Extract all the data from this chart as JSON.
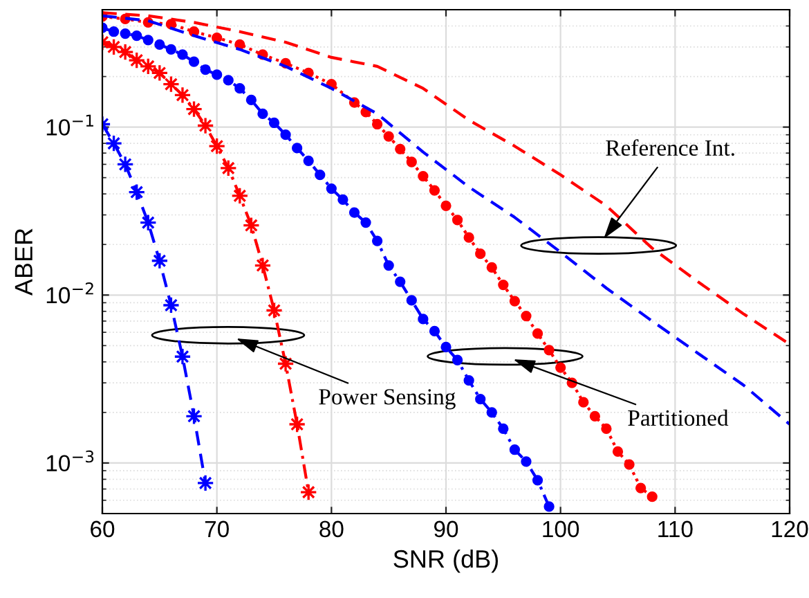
{
  "chart_data": {
    "type": "line",
    "xlabel": "SNR (dB)",
    "ylabel": "ABER",
    "log": "y",
    "grid": true,
    "legend": false,
    "xlim": [
      60,
      120
    ],
    "xticks": [
      60,
      70,
      80,
      90,
      100,
      110,
      120
    ],
    "ylim": [
      0.0005,
      0.5
    ],
    "yticks": [
      {
        "value": 0.001,
        "label": "10$^{−3}$"
      },
      {
        "value": 0.01,
        "label": "10$^{−2}$"
      },
      {
        "value": 0.1,
        "label": "10$^{−1}$"
      }
    ],
    "series": [
      {
        "color": "#0000ff",
        "marker": "star",
        "line_style": "dashed",
        "x": [
          60,
          61,
          62,
          63,
          64,
          65,
          66,
          67,
          68,
          69
        ],
        "values": [
          0.104,
          0.08,
          0.06,
          0.041,
          0.027,
          0.016,
          0.0087,
          0.0043,
          0.0019,
          0.00076
        ]
      },
      {
        "color": "#ff0000",
        "marker": "star",
        "line_style": "dashdot",
        "x": [
          60,
          61,
          62,
          63,
          64,
          65,
          66,
          67,
          68,
          69,
          70,
          71,
          72,
          73,
          74,
          75,
          76,
          77,
          78
        ],
        "values": [
          0.32,
          0.3,
          0.28,
          0.25,
          0.23,
          0.21,
          0.18,
          0.155,
          0.128,
          0.102,
          0.077,
          0.057,
          0.039,
          0.026,
          0.015,
          0.0081,
          0.0039,
          0.0017,
          0.00067
        ]
      },
      {
        "color": "#0000ff",
        "marker": "circle",
        "line_style": "dashdot",
        "x": [
          60,
          61,
          62,
          63,
          64,
          65,
          66,
          67,
          68,
          69,
          70,
          71,
          72,
          73,
          74,
          75,
          76,
          77,
          78,
          79,
          80,
          81,
          82,
          83,
          84,
          85,
          86,
          87,
          88,
          89,
          90,
          91,
          92,
          93,
          94,
          95,
          96,
          97,
          98,
          99
        ],
        "values": [
          0.39,
          0.37,
          0.36,
          0.35,
          0.33,
          0.31,
          0.29,
          0.27,
          0.245,
          0.22,
          0.205,
          0.19,
          0.17,
          0.145,
          0.12,
          0.106,
          0.09,
          0.075,
          0.063,
          0.052,
          0.043,
          0.037,
          0.031,
          0.027,
          0.021,
          0.015,
          0.012,
          0.0093,
          0.0072,
          0.0061,
          0.0049,
          0.0041,
          0.0031,
          0.0024,
          0.002,
          0.0016,
          0.0012,
          0.00102,
          0.00079,
          0.00055
        ]
      },
      {
        "color": "#ff0000",
        "marker": "circle",
        "line_style": "dotted",
        "x": [
          60,
          62,
          64,
          66,
          68,
          70,
          72,
          74,
          76,
          78,
          80,
          82,
          83,
          84,
          85,
          86,
          87,
          88,
          89,
          90,
          91,
          92,
          93,
          94,
          95,
          96,
          97,
          98,
          99,
          100,
          101,
          102,
          103,
          104,
          105,
          106,
          107,
          108
        ],
        "values": [
          0.455,
          0.44,
          0.42,
          0.41,
          0.37,
          0.34,
          0.31,
          0.27,
          0.24,
          0.21,
          0.18,
          0.14,
          0.123,
          0.104,
          0.088,
          0.074,
          0.062,
          0.051,
          0.042,
          0.034,
          0.028,
          0.022,
          0.0176,
          0.0146,
          0.0115,
          0.0092,
          0.0075,
          0.0059,
          0.0047,
          0.0037,
          0.003,
          0.0023,
          0.0019,
          0.0016,
          0.00117,
          0.00098,
          0.00071,
          0.00063
        ]
      },
      {
        "color": "#0000ff",
        "marker": "none",
        "line_style": "dashed",
        "x": [
          60,
          64,
          68,
          72,
          76,
          80,
          84,
          88,
          92,
          96,
          100,
          104,
          108,
          112,
          116,
          120
        ],
        "values": [
          0.46,
          0.43,
          0.35,
          0.29,
          0.23,
          0.17,
          0.12,
          0.071,
          0.044,
          0.029,
          0.018,
          0.011,
          0.007,
          0.0045,
          0.0029,
          0.0017
        ]
      },
      {
        "color": "#ff0000",
        "marker": "none",
        "line_style": "dashed",
        "x": [
          60,
          64,
          68,
          72,
          76,
          80,
          84,
          88,
          92,
          96,
          100,
          104,
          108,
          112,
          116,
          120
        ],
        "values": [
          0.48,
          0.46,
          0.42,
          0.37,
          0.32,
          0.26,
          0.23,
          0.17,
          0.11,
          0.077,
          0.052,
          0.034,
          0.019,
          0.012,
          0.0077,
          0.0051
        ]
      }
    ],
    "annotations": [
      "Reference Int.",
      "Power Sensing",
      "Partitioned"
    ]
  }
}
